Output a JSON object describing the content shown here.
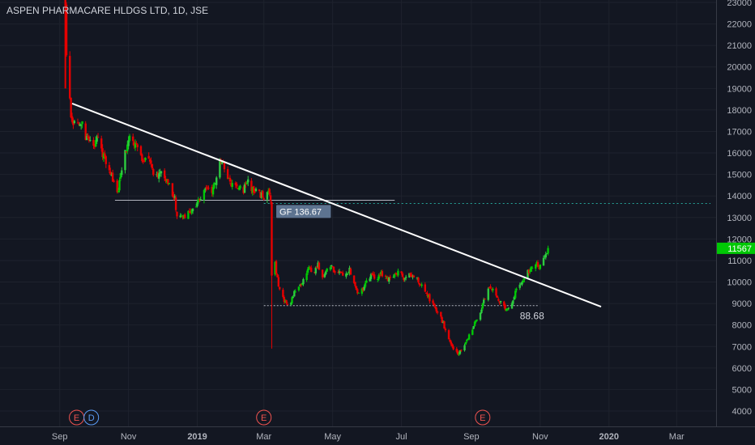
{
  "header": {
    "title": "ASPEN PHARMACARE HLDGS LTD, 1D, JSE"
  },
  "chart_data": {
    "type": "candlestick",
    "ylim": [
      3600,
      23200
    ],
    "y_ticks": [
      23000,
      22000,
      21000,
      20000,
      19000,
      18000,
      17000,
      16000,
      15000,
      14000,
      13000,
      12000,
      11000,
      10000,
      9000,
      8000,
      7000,
      6000,
      5000,
      4000
    ],
    "x_ticks": [
      {
        "label": "Sep",
        "date": "2018-09-01"
      },
      {
        "label": "Nov",
        "date": "2018-11-01"
      },
      {
        "label": "2019",
        "date": "2019-01-01",
        "bold": true
      },
      {
        "label": "Mar",
        "date": "2019-03-01"
      },
      {
        "label": "May",
        "date": "2019-05-01"
      },
      {
        "label": "Jul",
        "date": "2019-07-01"
      },
      {
        "label": "Sep",
        "date": "2019-09-01"
      },
      {
        "label": "Nov",
        "date": "2019-11-01"
      },
      {
        "label": "2020",
        "date": "2020-01-01",
        "bold": true
      },
      {
        "label": "Mar",
        "date": "2020-03-01"
      }
    ],
    "last_price": {
      "value": 11567,
      "label": "11567",
      "color": "#00c805"
    },
    "path": [
      [
        "2018-09-06",
        23000
      ],
      [
        "2018-09-07",
        20500
      ],
      [
        "2018-09-08",
        19400
      ],
      [
        "2018-09-10",
        18400
      ],
      [
        "2018-09-12",
        17300
      ],
      [
        "2018-09-16",
        17600
      ],
      [
        "2018-09-20",
        17500
      ],
      [
        "2018-09-24",
        16800
      ],
      [
        "2018-10-01",
        16200
      ],
      [
        "2018-10-05",
        16700
      ],
      [
        "2018-10-10",
        15800
      ],
      [
        "2018-10-14",
        15300
      ],
      [
        "2018-10-18",
        14700
      ],
      [
        "2018-10-22",
        14100
      ],
      [
        "2018-10-26",
        15200
      ],
      [
        "2018-10-30",
        16200
      ],
      [
        "2018-11-03",
        16800
      ],
      [
        "2018-11-06",
        16500
      ],
      [
        "2018-11-10",
        16000
      ],
      [
        "2018-11-14",
        15500
      ],
      [
        "2018-11-18",
        15800
      ],
      [
        "2018-11-22",
        15200
      ],
      [
        "2018-11-26",
        14900
      ],
      [
        "2018-11-30",
        15100
      ],
      [
        "2018-12-04",
        14600
      ],
      [
        "2018-12-08",
        14400
      ],
      [
        "2018-12-12",
        13900
      ],
      [
        "2018-12-14",
        13100
      ],
      [
        "2018-12-18",
        13200
      ],
      [
        "2018-12-21",
        13000
      ],
      [
        "2018-12-25",
        13200
      ],
      [
        "2018-12-29",
        13500
      ],
      [
        "2019-01-02",
        13800
      ],
      [
        "2019-01-06",
        14100
      ],
      [
        "2019-01-10",
        14400
      ],
      [
        "2019-01-14",
        14200
      ],
      [
        "2019-01-18",
        14900
      ],
      [
        "2019-01-22",
        15700
      ],
      [
        "2019-01-26",
        15200
      ],
      [
        "2019-01-30",
        14700
      ],
      [
        "2019-02-03",
        14300
      ],
      [
        "2019-02-07",
        14500
      ],
      [
        "2019-02-11",
        14300
      ],
      [
        "2019-02-15",
        14600
      ],
      [
        "2019-02-19",
        14300
      ],
      [
        "2019-02-23",
        14200
      ],
      [
        "2019-02-27",
        14000
      ],
      [
        "2019-03-03",
        13900
      ],
      [
        "2019-03-05",
        14200
      ],
      [
        "2019-03-07",
        13900
      ],
      [
        "2019-03-08",
        10400
      ],
      [
        "2019-03-10",
        11200
      ],
      [
        "2019-03-13",
        10100
      ],
      [
        "2019-03-17",
        9300
      ],
      [
        "2019-03-21",
        9000
      ],
      [
        "2019-03-25",
        9100
      ],
      [
        "2019-03-29",
        9600
      ],
      [
        "2019-04-02",
        9800
      ],
      [
        "2019-04-06",
        10200
      ],
      [
        "2019-04-10",
        10600
      ],
      [
        "2019-04-14",
        10400
      ],
      [
        "2019-04-18",
        10800
      ],
      [
        "2019-04-22",
        10300
      ],
      [
        "2019-04-26",
        10500
      ],
      [
        "2019-04-30",
        10700
      ],
      [
        "2019-05-04",
        10400
      ],
      [
        "2019-05-08",
        10500
      ],
      [
        "2019-05-12",
        10300
      ],
      [
        "2019-05-16",
        10600
      ],
      [
        "2019-05-20",
        10000
      ],
      [
        "2019-05-24",
        9400
      ],
      [
        "2019-05-28",
        9700
      ],
      [
        "2019-06-01",
        10200
      ],
      [
        "2019-06-05",
        10300
      ],
      [
        "2019-06-09",
        10100
      ],
      [
        "2019-06-13",
        10400
      ],
      [
        "2019-06-17",
        10200
      ],
      [
        "2019-06-21",
        10100
      ],
      [
        "2019-06-25",
        10300
      ],
      [
        "2019-06-29",
        10500
      ],
      [
        "2019-07-03",
        10200
      ],
      [
        "2019-07-07",
        10400
      ],
      [
        "2019-07-11",
        10300
      ],
      [
        "2019-07-15",
        10100
      ],
      [
        "2019-07-19",
        9800
      ],
      [
        "2019-07-23",
        9500
      ],
      [
        "2019-07-27",
        9100
      ],
      [
        "2019-07-31",
        8800
      ],
      [
        "2019-08-04",
        8500
      ],
      [
        "2019-08-08",
        7900
      ],
      [
        "2019-08-12",
        7300
      ],
      [
        "2019-08-16",
        6900
      ],
      [
        "2019-08-20",
        6700
      ],
      [
        "2019-08-24",
        6900
      ],
      [
        "2019-08-28",
        7300
      ],
      [
        "2019-09-01",
        7700
      ],
      [
        "2019-09-05",
        8200
      ],
      [
        "2019-09-09",
        8600
      ],
      [
        "2019-09-13",
        9300
      ],
      [
        "2019-09-17",
        9800
      ],
      [
        "2019-09-21",
        9600
      ],
      [
        "2019-09-25",
        9200
      ],
      [
        "2019-09-29",
        8900
      ],
      [
        "2019-10-03",
        8700
      ],
      [
        "2019-10-07",
        9100
      ],
      [
        "2019-10-11",
        9600
      ],
      [
        "2019-10-15",
        9900
      ],
      [
        "2019-10-19",
        10300
      ],
      [
        "2019-10-23",
        10600
      ],
      [
        "2019-10-27",
        10900
      ],
      [
        "2019-10-31",
        10700
      ],
      [
        "2019-11-03",
        10900
      ],
      [
        "2019-11-06",
        11200
      ],
      [
        "2019-11-08",
        11567
      ]
    ],
    "trendline": {
      "from": [
        "2018-09-12",
        18300
      ],
      "to": [
        "2019-12-25",
        8850
      ],
      "color": "#ffffff"
    },
    "support_lines": [
      {
        "from": [
          "2018-10-20",
          13800
        ],
        "to": [
          "2019-06-25",
          13800
        ],
        "color": "#b2b5be"
      },
      {
        "from": [
          "2019-03-01",
          8900
        ],
        "to": [
          "2019-10-30",
          8900
        ],
        "color": "#b2b5be",
        "style": "dotted"
      }
    ],
    "gap_line": {
      "from": [
        "2019-03-01",
        13650
      ],
      "to": [
        "2020-03-31",
        13650
      ],
      "color": "#26a69a",
      "style": "dotted"
    },
    "annotations": [
      {
        "text": "GF 136.67",
        "at": [
          "2019-03-12",
          13280
        ],
        "style": "box"
      },
      {
        "text": "88.68",
        "at": [
          "2019-10-14",
          8420
        ],
        "style": "plain"
      }
    ],
    "events": [
      {
        "label": "E",
        "date": "2018-09-16",
        "color": "#ef5350"
      },
      {
        "label": "D",
        "date": "2018-09-29",
        "color": "#5b9cf6"
      },
      {
        "label": "E",
        "date": "2019-03-01",
        "color": "#ef5350"
      },
      {
        "label": "E",
        "date": "2019-09-11",
        "color": "#ef5350"
      }
    ],
    "colors": {
      "up": "#26a69a",
      "up_bright": "#00c805",
      "down": "#e50000",
      "background": "#131722",
      "grid": "#1e222d"
    }
  }
}
